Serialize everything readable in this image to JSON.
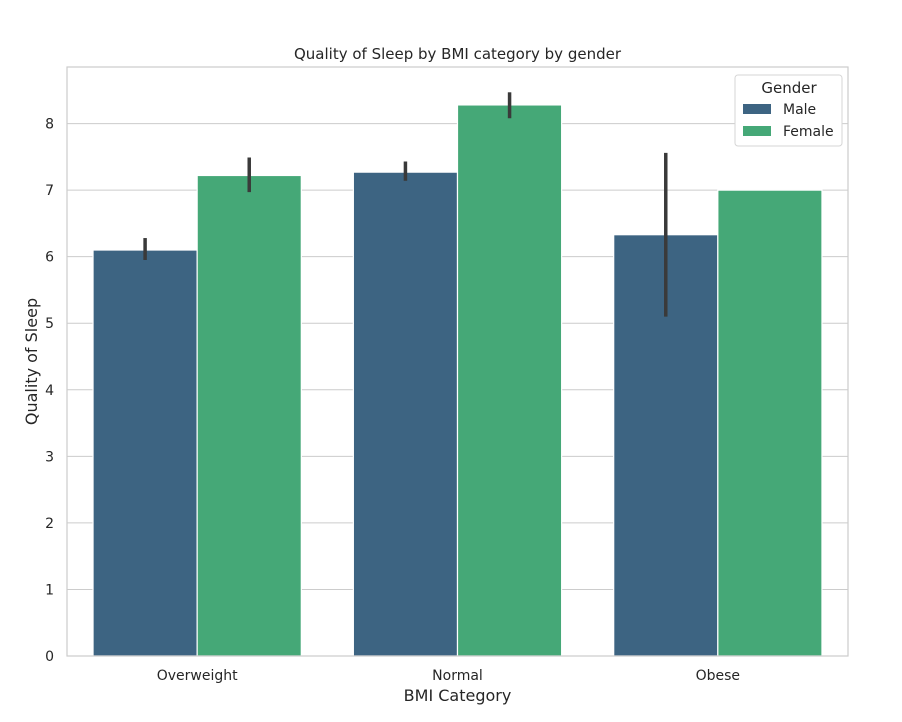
{
  "chart_data": {
    "type": "bar",
    "title": "Quality of Sleep by BMI category by gender",
    "xlabel": "BMI Category",
    "ylabel": "Quality of Sleep",
    "categories": [
      "Overweight",
      "Normal",
      "Obese"
    ],
    "ylim": [
      0,
      8.85
    ],
    "yticks": [
      0,
      1,
      2,
      3,
      4,
      5,
      6,
      7,
      8
    ],
    "grid": true,
    "legend": {
      "title": "Gender",
      "placement": "top-right"
    },
    "series": [
      {
        "name": "Male",
        "color": "#3d6482",
        "values": [
          6.1,
          7.27,
          6.33
        ],
        "error_low": [
          5.95,
          7.14,
          5.1
        ],
        "error_high": [
          6.28,
          7.43,
          7.56
        ]
      },
      {
        "name": "Female",
        "color": "#45a877",
        "values": [
          7.22,
          8.28,
          7.0
        ],
        "error_low": [
          6.97,
          8.08,
          7.0
        ],
        "error_high": [
          7.49,
          8.47,
          7.0
        ]
      }
    ]
  }
}
